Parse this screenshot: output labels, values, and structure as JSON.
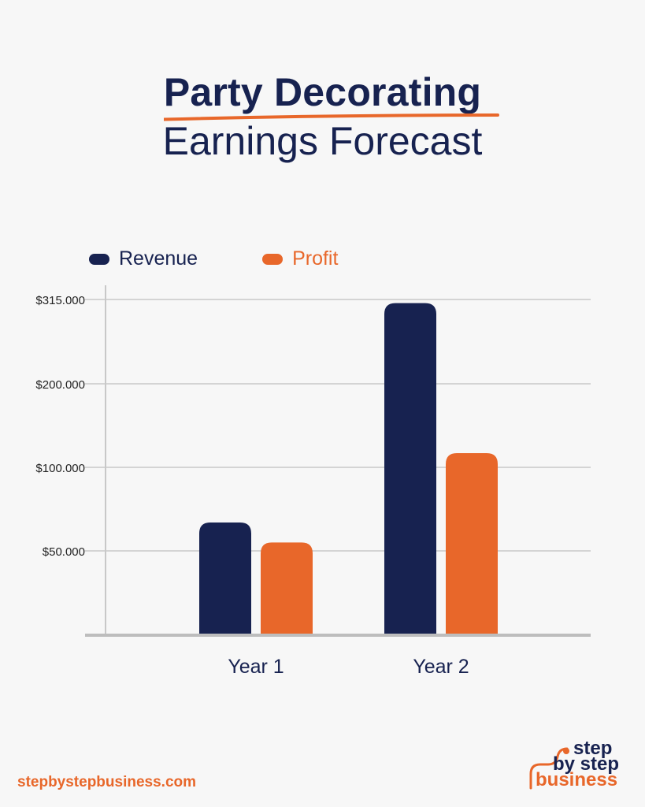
{
  "header": {
    "title_line1": "Party Decorating",
    "title_line2": "Earnings Forecast"
  },
  "colors": {
    "navy": "#172250",
    "orange": "#e8672a",
    "background": "#f7f7f7",
    "grid": "#d4d4d4",
    "axis": "#c8c8c8"
  },
  "chart_data": {
    "type": "bar",
    "categories": [
      "Year 1",
      "Year 2"
    ],
    "series": [
      {
        "name": "Revenue",
        "color": "#172250",
        "values": [
          67000,
          310000
        ]
      },
      {
        "name": "Profit",
        "color": "#e8672a",
        "values": [
          55000,
          117000
        ]
      }
    ],
    "y_ticks": [
      {
        "label": "$315.000",
        "value": 315000
      },
      {
        "label": "$200.000",
        "value": 200000
      },
      {
        "label": "$100.000",
        "value": 100000
      },
      {
        "label": "$50.000",
        "value": 50000
      }
    ],
    "ylim": [
      0,
      315000
    ],
    "grid": true,
    "legend_position": "top-left"
  },
  "footer": {
    "url": "stepbystepbusiness.com",
    "logo_line1": "step",
    "logo_line2": "by step",
    "logo_line3": "business"
  }
}
